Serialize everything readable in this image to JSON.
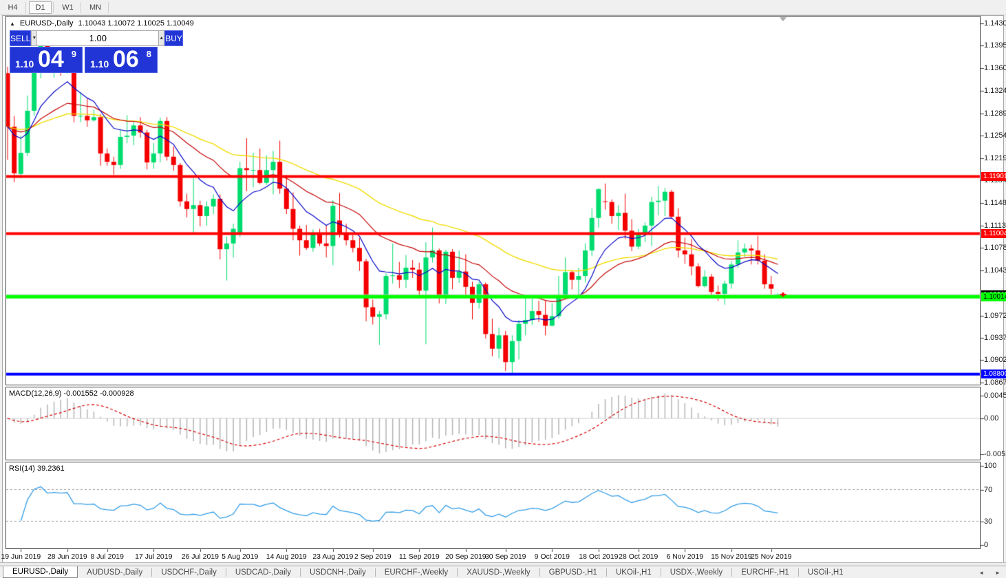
{
  "toolbar": {
    "items": [
      {
        "label": "H4",
        "active": false
      },
      {
        "label": "D1",
        "active": true
      },
      {
        "label": "W1",
        "active": false
      },
      {
        "label": "MN",
        "active": false
      }
    ]
  },
  "trade_panel": {
    "sell_label": "SELL",
    "buy_label": "BUY",
    "volume": "1.00",
    "dec_icon": "▼",
    "inc_icon": "▲",
    "sell_price": {
      "prefix": "1.10",
      "big": "04",
      "sup": "9"
    },
    "buy_price": {
      "prefix": "1.10",
      "big": "06",
      "sup": "8"
    }
  },
  "chart": {
    "collapse_icon": "▲",
    "title": "EURUSD-,Daily",
    "ohlc": "1.10043 1.10072 1.10025 1.10049",
    "colors": {
      "bull": "#00dc6e",
      "bear": "#f40000",
      "ma_fast": "#0000c8",
      "ma_mid": "#c40000",
      "ma_slow": "#f0dc00",
      "level_red": "#ff0000",
      "level_green": "#00ff00",
      "level_blue": "#0000ff",
      "bid_line": "#c4c4c4",
      "macd_bar": "#b4b4b4",
      "macd_signal": "#d40000",
      "rsi_line": "#2f9be6",
      "end_marker": "#a8a8a8"
    },
    "price_ticks": [
      "1.14300",
      "1.13950",
      "1.13600",
      "1.13240",
      "1.12890",
      "1.12540",
      "1.12190",
      "1.11840",
      "1.11480",
      "1.11130",
      "1.10780",
      "1.10430",
      "1.09720",
      "1.09370",
      "1.09020",
      "1.08670"
    ],
    "levels": [
      {
        "price": 1.11901,
        "label": "1.11901",
        "color": "#ff0000",
        "text": "#ffffff",
        "thickness": 4
      },
      {
        "price": 1.11004,
        "label": "1.11004",
        "color": "#ff0000",
        "text": "#ffffff",
        "thickness": 4
      },
      {
        "price": 1.10014,
        "label": "1.10014",
        "color": "#00ff00",
        "text": "#000000",
        "thickness": 5
      },
      {
        "price": 1.088,
        "label": "1.08800",
        "color": "#0000ff",
        "text": "#ffffff",
        "thickness": 4
      }
    ],
    "bid": {
      "price": 1.10049,
      "label": "1.10049"
    },
    "ma_periods": {
      "fast": 10,
      "mid": 25,
      "slow": 50
    },
    "date_ticks": [
      {
        "label": "19 Jun 2019",
        "index": 2
      },
      {
        "label": "28 Jun 2019",
        "index": 9
      },
      {
        "label": "8 Jul 2019",
        "index": 15
      },
      {
        "label": "17 Jul 2019",
        "index": 22
      },
      {
        "label": "26 Jul 2019",
        "index": 29
      },
      {
        "label": "5 Aug 2019",
        "index": 35
      },
      {
        "label": "14 Aug 2019",
        "index": 42
      },
      {
        "label": "23 Aug 2019",
        "index": 49
      },
      {
        "label": "2 Sep 2019",
        "index": 55
      },
      {
        "label": "11 Sep 2019",
        "index": 62
      },
      {
        "label": "20 Sep 2019",
        "index": 69
      },
      {
        "label": "30 Sep 2019",
        "index": 75
      },
      {
        "label": "9 Oct 2019",
        "index": 82
      },
      {
        "label": "18 Oct 2019",
        "index": 89
      },
      {
        "label": "28 Oct 2019",
        "index": 95
      },
      {
        "label": "6 Nov 2019",
        "index": 102
      },
      {
        "label": "15 Nov 2019",
        "index": 109
      },
      {
        "label": "25 Nov 2019",
        "index": 115
      }
    ],
    "chart_data": {
      "type": "candlestick",
      "note": "candles = [date, open, high, low, close]"
    },
    "candles": [
      [
        "17 Jun 2019",
        1.1352,
        1.1362,
        1.1216,
        1.1268
      ],
      [
        "18 Jun 2019",
        1.1268,
        1.1285,
        1.1181,
        1.1195
      ],
      [
        "19 Jun 2019",
        1.1194,
        1.1254,
        1.1187,
        1.1227
      ],
      [
        "20 Jun 2019",
        1.1227,
        1.1317,
        1.1222,
        1.1293
      ],
      [
        "21 Jun 2019",
        1.1293,
        1.1378,
        1.1285,
        1.1369
      ],
      [
        "24 Jun 2019",
        1.1369,
        1.1402,
        1.1344,
        1.1399
      ],
      [
        "25 Jun 2019",
        1.1399,
        1.1412,
        1.136,
        1.1365
      ],
      [
        "26 Jun 2019",
        1.1365,
        1.1391,
        1.1345,
        1.1372
      ],
      [
        "27 Jun 2019",
        1.1372,
        1.1388,
        1.1348,
        1.1368
      ],
      [
        "28 Jun 2019",
        1.1368,
        1.1392,
        1.1351,
        1.1373
      ],
      [
        "1 Jul 2019",
        1.1364,
        1.1368,
        1.1275,
        1.1285
      ],
      [
        "2 Jul 2019",
        1.1285,
        1.1322,
        1.1275,
        1.1285
      ],
      [
        "3 Jul 2019",
        1.1285,
        1.1312,
        1.1268,
        1.1278
      ],
      [
        "4 Jul 2019",
        1.1278,
        1.1295,
        1.1276,
        1.1283
      ],
      [
        "5 Jul 2019",
        1.1283,
        1.1288,
        1.1207,
        1.1226
      ],
      [
        "8 Jul 2019",
        1.1226,
        1.1234,
        1.1207,
        1.1213
      ],
      [
        "9 Jul 2019",
        1.1213,
        1.1221,
        1.1193,
        1.1208
      ],
      [
        "10 Jul 2019",
        1.1208,
        1.1264,
        1.1202,
        1.1252
      ],
      [
        "11 Jul 2019",
        1.1252,
        1.1286,
        1.1242,
        1.1254
      ],
      [
        "12 Jul 2019",
        1.1254,
        1.1275,
        1.1239,
        1.127
      ],
      [
        "15 Jul 2019",
        1.127,
        1.1283,
        1.1251,
        1.1259
      ],
      [
        "16 Jul 2019",
        1.1259,
        1.1263,
        1.1201,
        1.1212
      ],
      [
        "17 Jul 2019",
        1.1212,
        1.1242,
        1.1202,
        1.1226
      ],
      [
        "18 Jul 2019",
        1.1226,
        1.1282,
        1.1212,
        1.1277
      ],
      [
        "19 Jul 2019",
        1.1277,
        1.1283,
        1.1215,
        1.1221
      ],
      [
        "22 Jul 2019",
        1.1221,
        1.1237,
        1.1199,
        1.1208
      ],
      [
        "23 Jul 2019",
        1.1208,
        1.1211,
        1.1143,
        1.1151
      ],
      [
        "24 Jul 2019",
        1.1151,
        1.1163,
        1.1126,
        1.1139
      ],
      [
        "25 Jul 2019",
        1.1139,
        1.1187,
        1.1101,
        1.1145
      ],
      [
        "26 Jul 2019",
        1.1145,
        1.1152,
        1.1112,
        1.1128
      ],
      [
        "29 Jul 2019",
        1.1128,
        1.1151,
        1.1113,
        1.1143
      ],
      [
        "30 Jul 2019",
        1.1143,
        1.1162,
        1.1131,
        1.1155
      ],
      [
        "31 Jul 2019",
        1.1155,
        1.1162,
        1.106,
        1.1076
      ],
      [
        "1 Aug 2019",
        1.1076,
        1.1096,
        1.1027,
        1.1085
      ],
      [
        "2 Aug 2019",
        1.1085,
        1.1116,
        1.1063,
        1.1108
      ],
      [
        "5 Aug 2019",
        1.11,
        1.1213,
        1.1095,
        1.1203
      ],
      [
        "6 Aug 2019",
        1.1203,
        1.125,
        1.1167,
        1.12
      ],
      [
        "7 Aug 2019",
        1.12,
        1.1227,
        1.1173,
        1.12
      ],
      [
        "8 Aug 2019",
        1.12,
        1.1234,
        1.1178,
        1.118
      ],
      [
        "9 Aug 2019",
        1.118,
        1.1223,
        1.1177,
        1.12
      ],
      [
        "12 Aug 2019",
        1.12,
        1.123,
        1.1162,
        1.1213
      ],
      [
        "13 Aug 2019",
        1.1213,
        1.1246,
        1.1163,
        1.1171
      ],
      [
        "14 Aug 2019",
        1.1171,
        1.1192,
        1.1131,
        1.1139
      ],
      [
        "15 Aug 2019",
        1.1139,
        1.1165,
        1.109,
        1.1108
      ],
      [
        "16 Aug 2019",
        1.1108,
        1.1113,
        1.1066,
        1.109
      ],
      [
        "19 Aug 2019",
        1.109,
        1.1114,
        1.1075,
        1.1078
      ],
      [
        "20 Aug 2019",
        1.1078,
        1.1107,
        1.1072,
        1.11
      ],
      [
        "21 Aug 2019",
        1.11,
        1.1108,
        1.1081,
        1.1085
      ],
      [
        "22 Aug 2019",
        1.1085,
        1.1113,
        1.1063,
        1.1081
      ],
      [
        "23 Aug 2019",
        1.1081,
        1.1153,
        1.1051,
        1.1144
      ],
      [
        "26 Aug 2019",
        1.1121,
        1.1164,
        1.1094,
        1.1101
      ],
      [
        "27 Aug 2019",
        1.1101,
        1.1116,
        1.1082,
        1.109
      ],
      [
        "28 Aug 2019",
        1.109,
        1.1098,
        1.1071,
        1.1078
      ],
      [
        "29 Aug 2019",
        1.1078,
        1.1094,
        1.1042,
        1.1057
      ],
      [
        "30 Aug 2019",
        1.1057,
        1.1061,
        1.0963,
        1.0985
      ],
      [
        "2 Sep 2019",
        1.0985,
        1.0997,
        1.0958,
        1.097
      ],
      [
        "3 Sep 2019",
        1.097,
        1.0979,
        1.0926,
        1.0974
      ],
      [
        "4 Sep 2019",
        1.0974,
        1.1038,
        1.0966,
        1.1034
      ],
      [
        "5 Sep 2019",
        1.1034,
        1.1085,
        1.1022,
        1.1035
      ],
      [
        "6 Sep 2019",
        1.1035,
        1.1056,
        1.1015,
        1.1028
      ],
      [
        "9 Sep 2019",
        1.1028,
        1.1067,
        1.1015,
        1.1047
      ],
      [
        "10 Sep 2019",
        1.1047,
        1.1059,
        1.1031,
        1.1044
      ],
      [
        "11 Sep 2019",
        1.1044,
        1.1055,
        1.0999,
        1.1011
      ],
      [
        "12 Sep 2019",
        1.1011,
        1.1087,
        1.0927,
        1.1063
      ],
      [
        "13 Sep 2019",
        1.1063,
        1.111,
        1.1055,
        1.1074
      ],
      [
        "16 Sep 2019",
        1.1074,
        1.1077,
        1.0991,
        1.1004
      ],
      [
        "17 Sep 2019",
        1.1004,
        1.1075,
        1.099,
        1.1072
      ],
      [
        "18 Sep 2019",
        1.1072,
        1.1076,
        1.1013,
        1.1031
      ],
      [
        "19 Sep 2019",
        1.1031,
        1.1074,
        1.1023,
        1.1041
      ],
      [
        "20 Sep 2019",
        1.1041,
        1.1068,
        1.1003,
        1.1017
      ],
      [
        "23 Sep 2019",
        1.1017,
        1.1025,
        1.0966,
        1.0992
      ],
      [
        "24 Sep 2019",
        1.0992,
        1.1025,
        1.0983,
        1.1021
      ],
      [
        "25 Sep 2019",
        1.1021,
        1.1024,
        1.0936,
        1.0943
      ],
      [
        "26 Sep 2019",
        1.0943,
        1.0967,
        1.0908,
        1.092
      ],
      [
        "27 Sep 2019",
        1.092,
        1.0953,
        1.0905,
        1.0941
      ],
      [
        "30 Sep 2019",
        1.0941,
        1.0948,
        1.0885,
        1.0899
      ],
      [
        "1 Oct 2019",
        1.0899,
        1.0941,
        1.0879,
        1.0932
      ],
      [
        "2 Oct 2019",
        1.0932,
        1.0965,
        1.0903,
        1.0959
      ],
      [
        "3 Oct 2019",
        1.0959,
        1.0999,
        1.0941,
        1.0965
      ],
      [
        "4 Oct 2019",
        1.0965,
        1.0999,
        1.0957,
        1.0979
      ],
      [
        "7 Oct 2019",
        1.0979,
        1.0995,
        1.0962,
        1.0973
      ],
      [
        "8 Oct 2019",
        1.0973,
        1.0995,
        1.0941,
        1.0956
      ],
      [
        "9 Oct 2019",
        1.0956,
        1.0991,
        1.0955,
        1.0971
      ],
      [
        "10 Oct 2019",
        1.0971,
        1.1034,
        1.0967,
        1.1004
      ],
      [
        "11 Oct 2019",
        1.1004,
        1.1063,
        1.1002,
        1.104
      ],
      [
        "14 Oct 2019",
        1.104,
        1.1043,
        1.1013,
        1.1028
      ],
      [
        "15 Oct 2019",
        1.1028,
        1.1047,
        1.1001,
        1.1034
      ],
      [
        "16 Oct 2019",
        1.1034,
        1.1085,
        1.1024,
        1.1074
      ],
      [
        "17 Oct 2019",
        1.1074,
        1.114,
        1.1065,
        1.1125
      ],
      [
        "18 Oct 2019",
        1.1125,
        1.1172,
        1.111,
        1.117
      ],
      [
        "21 Oct 2019",
        1.1151,
        1.1179,
        1.1138,
        1.115
      ],
      [
        "22 Oct 2019",
        1.115,
        1.1154,
        1.1116,
        1.1128
      ],
      [
        "23 Oct 2019",
        1.1128,
        1.1145,
        1.1106,
        1.1133
      ],
      [
        "24 Oct 2019",
        1.1133,
        1.1163,
        1.1092,
        1.1105
      ],
      [
        "25 Oct 2019",
        1.1105,
        1.1123,
        1.1073,
        1.108
      ],
      [
        "28 Oct 2019",
        1.108,
        1.1108,
        1.1076,
        1.1099
      ],
      [
        "29 Oct 2019",
        1.1099,
        1.1118,
        1.1087,
        1.1113
      ],
      [
        "30 Oct 2019",
        1.1113,
        1.1158,
        1.1081,
        1.115
      ],
      [
        "31 Oct 2019",
        1.115,
        1.1175,
        1.1129,
        1.1152
      ],
      [
        "1 Nov 2019",
        1.1152,
        1.1172,
        1.1128,
        1.1166
      ],
      [
        "4 Nov 2019",
        1.1166,
        1.1169,
        1.1124,
        1.1127
      ],
      [
        "5 Nov 2019",
        1.1127,
        1.114,
        1.1063,
        1.1074
      ],
      [
        "6 Nov 2019",
        1.1074,
        1.1094,
        1.1053,
        1.1068
      ],
      [
        "7 Nov 2019",
        1.1068,
        1.1092,
        1.1035,
        1.1049
      ],
      [
        "8 Nov 2019",
        1.1049,
        1.1054,
        1.1016,
        1.1018
      ],
      [
        "11 Nov 2019",
        1.1018,
        1.1043,
        1.1016,
        1.1033
      ],
      [
        "12 Nov 2019",
        1.1033,
        1.1037,
        1.1002,
        1.1009
      ],
      [
        "13 Nov 2019",
        1.1009,
        1.1019,
        1.0995,
        1.1006
      ],
      [
        "14 Nov 2019",
        1.1006,
        1.1027,
        1.0989,
        1.1022
      ],
      [
        "15 Nov 2019",
        1.1022,
        1.1057,
        1.1014,
        1.1052
      ],
      [
        "18 Nov 2019",
        1.1052,
        1.109,
        1.1046,
        1.1071
      ],
      [
        "19 Nov 2019",
        1.1071,
        1.1085,
        1.1064,
        1.1077
      ],
      [
        "20 Nov 2019",
        1.1077,
        1.1083,
        1.1052,
        1.1074
      ],
      [
        "21 Nov 2019",
        1.1074,
        1.1097,
        1.1052,
        1.1058
      ],
      [
        "22 Nov 2019",
        1.1058,
        1.1068,
        1.1014,
        1.1021
      ],
      [
        "25 Nov 2019",
        1.1021,
        1.1034,
        1.1004,
        1.1014
      ],
      [
        "26 Nov 2019",
        1.10043,
        1.10072,
        1.10025,
        1.10049
      ]
    ]
  },
  "macd": {
    "label": "MACD(12,26,9) -0.001552 -0.000928",
    "fast": 12,
    "slow": 26,
    "signal": 9,
    "axis_top": "0.004536",
    "axis_zero": "0.00",
    "axis_bottom": "-0.005205"
  },
  "rsi": {
    "label": "RSI(14) 39.2361",
    "period": 14,
    "levels": [
      70,
      30
    ],
    "axis": [
      "100",
      "70",
      "30",
      "0"
    ]
  },
  "tabs": {
    "items": [
      {
        "label": "EURUSD-,Daily",
        "active": true
      },
      {
        "label": "AUDUSD-,Daily",
        "active": false
      },
      {
        "label": "USDCHF-,Daily",
        "active": false
      },
      {
        "label": "USDCAD-,Daily",
        "active": false
      },
      {
        "label": "USDCNH-,Daily",
        "active": false
      },
      {
        "label": "EURCHF-,Weekly",
        "active": false
      },
      {
        "label": "XAUUSD-,Weekly",
        "active": false
      },
      {
        "label": "GBPUSD-,H1",
        "active": false
      },
      {
        "label": "UKOil-,H1",
        "active": false
      },
      {
        "label": "USDX-,Weekly",
        "active": false
      },
      {
        "label": "EURCHF-,H1",
        "active": false
      },
      {
        "label": "USOil-,H1",
        "active": false
      }
    ],
    "scroll_left_icon": "◄",
    "scroll_right_icon": "►"
  }
}
